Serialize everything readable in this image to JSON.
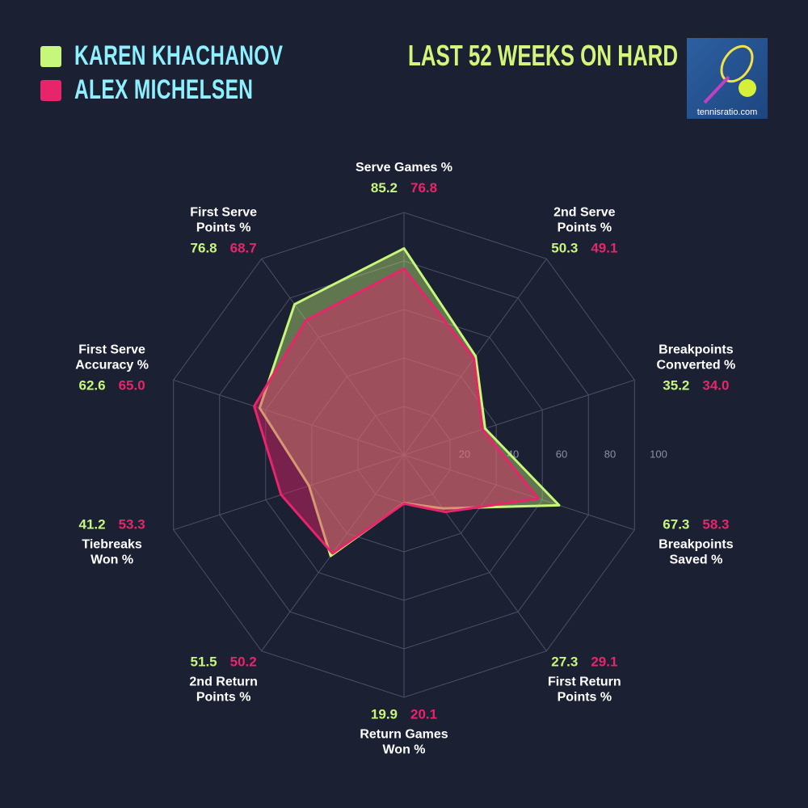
{
  "logo": "tennisratio.com",
  "chart_data": {
    "type": "radar",
    "title": "LAST 52 WEEKS ON HARD",
    "categories": [
      "Serve Games %",
      "2nd Serve\nPoints %",
      "Breakpoints\nConverted %",
      "Breakpoints\nSaved %",
      "First Return\nPoints %",
      "Return Games\nWon %",
      "2nd Return\nPoints %",
      "Tiebreaks\nWon %",
      "First Serve\nAccuracy %",
      "First Serve\nPoints %"
    ],
    "series": [
      {
        "name": "KAREN KHACHANOV",
        "color": "#c6f77a",
        "values": [
          85.2,
          50.3,
          35.2,
          67.3,
          27.3,
          19.9,
          51.5,
          41.2,
          62.6,
          76.8
        ],
        "value_labels": [
          "85.2",
          "50.3",
          "35.2",
          "67.3",
          "27.3",
          "19.9",
          "51.5",
          "41.2",
          "62.6",
          "76.8"
        ]
      },
      {
        "name": "ALEX MICHELSEN",
        "color": "#e8246a",
        "values": [
          76.8,
          49.1,
          34.0,
          58.3,
          29.1,
          20.1,
          50.2,
          53.3,
          65.0,
          68.7
        ],
        "value_labels": [
          "76.8",
          "49.1",
          "34.0",
          "58.3",
          "29.1",
          "20.1",
          "50.2",
          "53.3",
          "65.0",
          "68.7"
        ]
      }
    ],
    "rlim": [
      0,
      100
    ],
    "rticks": [
      20,
      40,
      60,
      80,
      100
    ],
    "grid": true
  }
}
